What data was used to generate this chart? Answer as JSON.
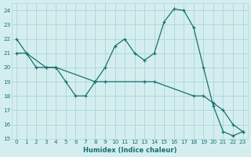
{
  "xlabel": "Humidex (Indice chaleur)",
  "bg_color": "#d4eef0",
  "grid_color": "#b0d8d8",
  "line_color": "#1a7070",
  "xlim": [
    -0.5,
    23.5
  ],
  "ylim": [
    15,
    24.5
  ],
  "yticks": [
    15,
    16,
    17,
    18,
    19,
    20,
    21,
    22,
    23,
    24
  ],
  "xticks": [
    0,
    1,
    2,
    3,
    4,
    5,
    6,
    7,
    8,
    9,
    10,
    11,
    12,
    13,
    14,
    15,
    16,
    17,
    18,
    19,
    20,
    21,
    22,
    23
  ],
  "series1_x": [
    0,
    1,
    2,
    3,
    4,
    5,
    6,
    7,
    8,
    9,
    10,
    11,
    12,
    13,
    14,
    15,
    16,
    17,
    18,
    19,
    20,
    21,
    22,
    23
  ],
  "series1_y": [
    22,
    21,
    20,
    20,
    20,
    19,
    18,
    18,
    19,
    20,
    21.5,
    22,
    21,
    20.5,
    21,
    23.2,
    24.1,
    24.0,
    22.8,
    20,
    17.3,
    15.5,
    15.2,
    15.5
  ],
  "series2_x": [
    0,
    1,
    3,
    4,
    8,
    9,
    13,
    14,
    18,
    19,
    20,
    21,
    22,
    23
  ],
  "series2_y": [
    21,
    21,
    20,
    20,
    19,
    19,
    19,
    19,
    18,
    18,
    17.5,
    17,
    16,
    15.5
  ]
}
